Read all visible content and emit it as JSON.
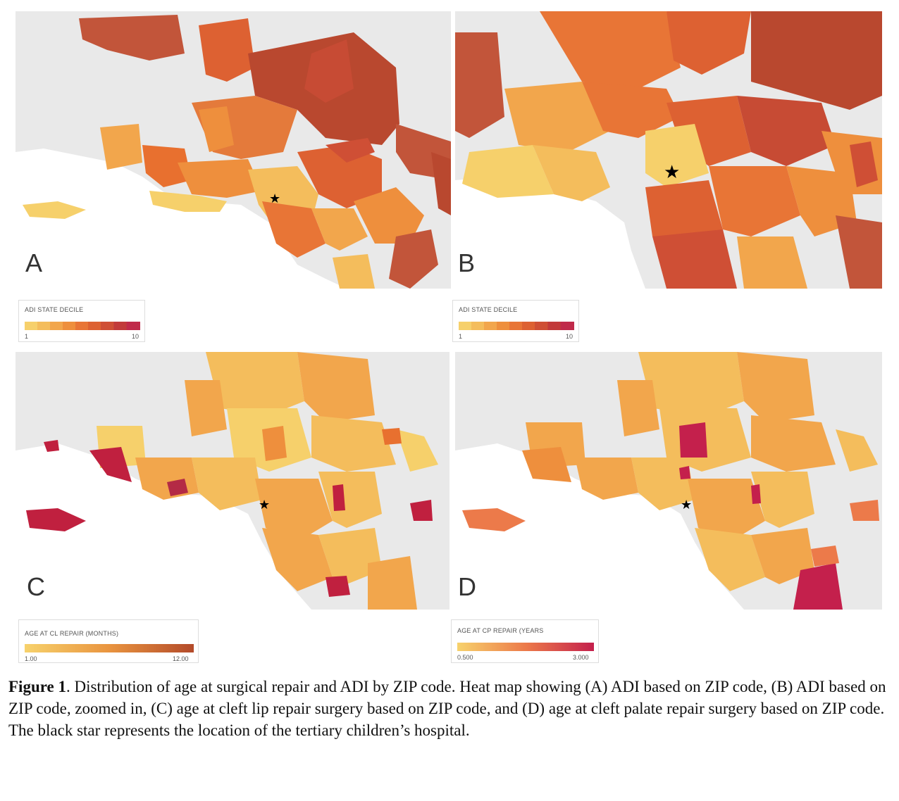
{
  "panels": [
    {
      "letter": "A"
    },
    {
      "letter": "B"
    },
    {
      "letter": "C"
    },
    {
      "letter": "D"
    }
  ],
  "legends": [
    {
      "title": "ADI STATE DECILE",
      "min": "1",
      "max": "10"
    },
    {
      "title": "ADI STATE DECILE",
      "min": "1",
      "max": "10"
    },
    {
      "title": "AGE AT CL REPAIR (MONTHS)",
      "min": "1.00",
      "max": "12.00"
    },
    {
      "title": "AGE AT CP REPAIR (YEARS",
      "min": "0.500",
      "max": "3.000"
    }
  ],
  "colors": {
    "adi_steps": [
      "#f6d06b",
      "#f4bd5c",
      "#f2a64c",
      "#ee8f3d",
      "#e87536",
      "#dd6132",
      "#cf4f35",
      "#c23a3a",
      "#c02a4a"
    ],
    "cl_gradient": [
      "#f7d26c",
      "#e9943f",
      "#b34a2a"
    ],
    "cp_gradient": [
      "#f7d26c",
      "#ec7a4a",
      "#c4204c"
    ],
    "land": "#e9e9e9",
    "water": "#ffffff",
    "star": "#000000"
  },
  "caption": {
    "label": "Figure 1",
    "text": ". Distribution of age at surgical repair and ADI by ZIP code. Heat map showing (A) ADI based on ZIP code, (B) ADI based on ZIP code, zoomed in, (C) age at cleft lip repair surgery based on ZIP code, and (D) age at cleft palate repair surgery based on ZIP code. The black star represents the location of the tertiary children’s hospital."
  }
}
